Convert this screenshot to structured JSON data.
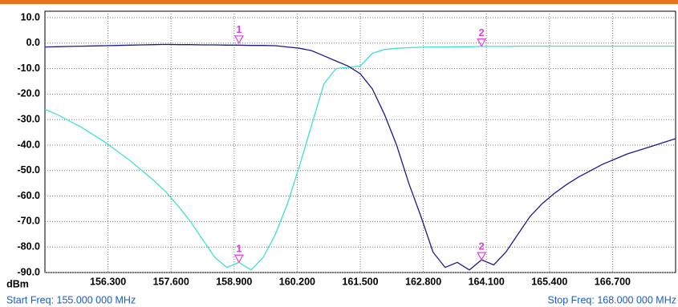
{
  "chart_data": {
    "type": "line",
    "y_unit": "dBm",
    "start_label": "Start Freq: 155.000 000 MHz",
    "stop_label": "Stop Freq: 168.000 000 MHz",
    "xlim": [
      155,
      168
    ],
    "ylim": [
      -90,
      10
    ],
    "xticks": [
      {
        "value": 156.3,
        "label": "156.300"
      },
      {
        "value": 157.6,
        "label": "157.600"
      },
      {
        "value": 158.9,
        "label": "158.900"
      },
      {
        "value": 160.2,
        "label": "160.200"
      },
      {
        "value": 161.5,
        "label": "161.500"
      },
      {
        "value": 162.8,
        "label": "162.800"
      },
      {
        "value": 164.1,
        "label": "164.100"
      },
      {
        "value": 165.4,
        "label": "165.400"
      },
      {
        "value": 166.7,
        "label": "166.700"
      }
    ],
    "yticks": [
      {
        "value": 10,
        "label": "10.0"
      },
      {
        "value": 0,
        "label": "0.0"
      },
      {
        "value": -10,
        "label": "-10.0"
      },
      {
        "value": -20,
        "label": "-20.0"
      },
      {
        "value": -30,
        "label": "-30.0"
      },
      {
        "value": -40,
        "label": "-40.0"
      },
      {
        "value": -50,
        "label": "-50.0"
      },
      {
        "value": -60,
        "label": "-60.0"
      },
      {
        "value": -70,
        "label": "-70.0"
      },
      {
        "value": -80,
        "label": "-80.0"
      },
      {
        "value": -90,
        "label": "-90.0"
      }
    ],
    "grid": true,
    "x": [
      155,
      155.25,
      155.5,
      155.75,
      156,
      156.25,
      156.5,
      156.75,
      157,
      157.25,
      157.5,
      157.75,
      158,
      158.25,
      158.5,
      158.75,
      159,
      159.25,
      159.5,
      159.75,
      160,
      160.25,
      160.5,
      160.75,
      161,
      161.25,
      161.5,
      161.75,
      162,
      162.25,
      162.5,
      162.75,
      163,
      163.25,
      163.5,
      163.75,
      164,
      164.25,
      164.5,
      164.75,
      165,
      165.25,
      165.5,
      165.75,
      166,
      166.25,
      166.5,
      166.75,
      167,
      167.25,
      167.5,
      167.75,
      168
    ],
    "series": [
      {
        "color": "#40e0d0",
        "values": [
          -26,
          -28,
          -30.5,
          -33,
          -36,
          -39,
          -42.5,
          -46,
          -50,
          -54,
          -58.5,
          -64,
          -70,
          -77,
          -84,
          -88,
          -86,
          -89,
          -84,
          -75,
          -63,
          -48,
          -32,
          -16,
          -10,
          -9.5,
          -9,
          -4,
          -2.5,
          -2,
          -1.8,
          -1.6,
          -1.5,
          -1.5,
          -1.4,
          -1.4,
          -1.3,
          -1.3,
          -1.3,
          -1.2,
          -1.2,
          -1.2,
          -1.2,
          -1.2,
          -1.2,
          -1.2,
          -1.2,
          -1.2,
          -1.2,
          -1.2,
          -1.2,
          -1.2,
          -1.2
        ]
      },
      {
        "color": "#1a1a8c",
        "values": [
          -1.5,
          -1.4,
          -1.3,
          -1.2,
          -1.1,
          -1,
          -0.9,
          -0.8,
          -0.7,
          -0.6,
          -0.5,
          -0.6,
          -0.6,
          -0.7,
          -0.7,
          -0.8,
          -0.8,
          -0.9,
          -0.9,
          -1,
          -1.5,
          -2,
          -3,
          -5,
          -7,
          -9,
          -12,
          -18,
          -28,
          -40,
          -55,
          -68,
          -82,
          -88,
          -86,
          -89,
          -85,
          -87,
          -82,
          -75,
          -68,
          -63,
          -59,
          -55.5,
          -52.5,
          -50,
          -47.5,
          -45.5,
          -43.5,
          -42,
          -40.5,
          -39,
          -37.5
        ]
      }
    ],
    "markers": [
      {
        "label": "1",
        "x": 159,
        "y": 0,
        "color": "#e040e0"
      },
      {
        "label": "1",
        "x": 159,
        "y": -86,
        "color": "#e040e0"
      },
      {
        "label": "2",
        "x": 164,
        "y": -1.2,
        "color": "#e040e0"
      },
      {
        "label": "2",
        "x": 164,
        "y": -85,
        "color": "#e040e0"
      }
    ]
  }
}
